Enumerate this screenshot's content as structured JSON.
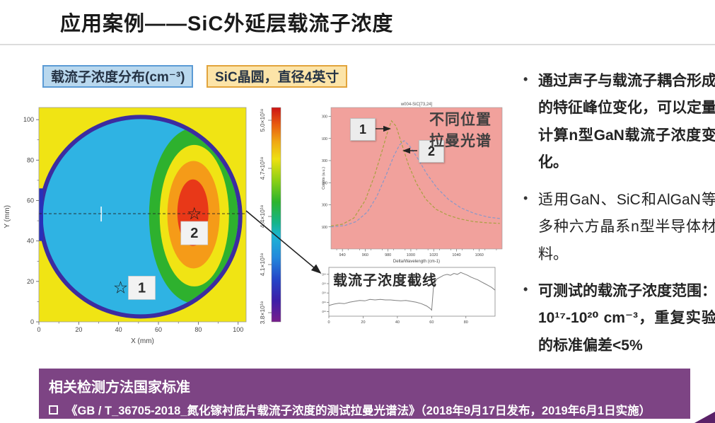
{
  "slide": {
    "title": "应用案例——SiC外延层载流子浓度",
    "chips": [
      {
        "label": "载流子浓度分布(cm⁻³)"
      },
      {
        "label": "SiC晶圆，直径4英寸"
      }
    ],
    "bullets": [
      {
        "text": "通过声子与载流子耦合形成的特征峰位变化，可以定量计算n型GaN载流子浓度变化。",
        "bold": true
      },
      {
        "text": "适用GaN、SiC和AlGaN等多种六方晶系n型半导体材料。",
        "bold": false
      },
      {
        "text": "可测试的载流子浓度范围：10¹⁷-10²⁰ cm⁻³，重复实验的标准偏差<5%",
        "bold": true
      }
    ],
    "banner": {
      "heading": "相关检测方法国家标准",
      "item": "《GB / T_36705-2018_氮化镓衬底片载流子浓度的测试拉曼光谱法》（2018年9月17日发布，2019年6月1日实施）"
    }
  },
  "colors": {
    "banner_purple": "#7d4484",
    "corner_purple": "#5b2168",
    "chip_blue_bg": "#b9d8ee",
    "chip_blue_border": "#5b9bd5",
    "chip_yellow_bg": "#fce4a8",
    "chip_yellow_border": "#e2a43c",
    "raman_plot_bg": "#f1a19c",
    "wafer_bg_yellow": "#f0e414",
    "wafer_body_cyan": "#2fb3e3",
    "wafer_rim_blue": "#3c2ca0",
    "lobe_green": "#2eb12e",
    "lobe_yellow": "#f0e414",
    "lobe_orange": "#f59b18",
    "lobe_red": "#e83818"
  },
  "chart_data": [
    {
      "type": "heatmap",
      "name": "wafer-carrier-concentration-map",
      "xlabel": "X (mm)",
      "ylabel": "Y (mm)",
      "xticks": [
        0,
        20,
        40,
        60,
        80,
        100
      ],
      "yticks": [
        0,
        20,
        40,
        60,
        80,
        100
      ],
      "xlim": [
        0,
        104
      ],
      "ylim": [
        0,
        106
      ],
      "colorbar_ticks": [
        "5.0×10¹⁸",
        "4.7×10¹⁸",
        "4.4×10¹⁸",
        "4.1×10¹⁸",
        "3.8×10¹⁸"
      ],
      "markers": [
        {
          "label": "1",
          "x": 41,
          "y": 17
        },
        {
          "label": "2",
          "x": 78,
          "y": 53.5
        }
      ],
      "cutline_y": 53.5,
      "description": "4英寸SiC晶圆载流子浓度分布图：晶圆主体约4.2×10¹⁸ cm⁻³（青色），右侧月牙形高浓度区达5.0×10¹⁸ cm⁻³（红-橙色），沿y≈53mm有虚线截线，背景为黄色，边缘为深蓝紫色"
    },
    {
      "type": "line",
      "name": "raman-spectra-two-positions",
      "title": "w004-SiC[73,24]",
      "annotation": "不同位置\n拉曼光谱",
      "xlabel": "Delta/Wavelength (cm-1)",
      "ylabel": "Counts (a.u.)",
      "xticks": [
        940,
        960,
        980,
        1000,
        1020,
        1040,
        1060
      ],
      "yticks": [
        500,
        1000,
        1500,
        2000,
        2500,
        3000
      ],
      "xlim": [
        930,
        1080
      ],
      "ylim": [
        0,
        3200
      ],
      "series": [
        {
          "name": "1",
          "color": "#a8a040",
          "dash": true,
          "points": [
            [
              930,
              520
            ],
            [
              940,
              560
            ],
            [
              950,
              700
            ],
            [
              960,
              1100
            ],
            [
              968,
              1650
            ],
            [
              974,
              2150
            ],
            [
              979,
              2600
            ],
            [
              983,
              2900
            ],
            [
              987,
              2780
            ],
            [
              992,
              2380
            ],
            [
              998,
              1900
            ],
            [
              1005,
              1480
            ],
            [
              1013,
              1130
            ],
            [
              1022,
              900
            ],
            [
              1032,
              770
            ],
            [
              1043,
              680
            ],
            [
              1055,
              620
            ],
            [
              1068,
              590
            ],
            [
              1078,
              580
            ]
          ]
        },
        {
          "name": "2",
          "color": "#8898c8",
          "dash": true,
          "points": [
            [
              930,
              500
            ],
            [
              942,
              530
            ],
            [
              952,
              620
            ],
            [
              962,
              840
            ],
            [
              970,
              1180
            ],
            [
              978,
              1650
            ],
            [
              985,
              2100
            ],
            [
              990,
              2350
            ],
            [
              994,
              2450
            ],
            [
              999,
              2330
            ],
            [
              1006,
              2050
            ],
            [
              1014,
              1700
            ],
            [
              1023,
              1380
            ],
            [
              1033,
              1120
            ],
            [
              1044,
              930
            ],
            [
              1056,
              800
            ],
            [
              1068,
              720
            ],
            [
              1078,
              690
            ]
          ]
        }
      ]
    },
    {
      "type": "line",
      "name": "carrier-concentration-cutline",
      "title": "载流子浓度截线",
      "xticks": [
        0,
        20,
        40,
        60,
        80
      ],
      "yticks": [
        4.0,
        4.2,
        4.4,
        4.6,
        4.8
      ],
      "ytick_labels": [
        "4.0×10¹⁸",
        "4.2×10¹⁸",
        "4.4×10¹⁸",
        "4.6×10¹⁸",
        "4.8×10¹⁸"
      ],
      "xlim": [
        0,
        97
      ],
      "ylim": [
        3.9,
        4.95
      ],
      "series": [
        {
          "name": "截线",
          "color": "#808080",
          "points": [
            [
              0,
              4.13
            ],
            [
              3,
              4.16
            ],
            [
              6,
              4.18
            ],
            [
              9,
              4.17
            ],
            [
              12,
              4.2
            ],
            [
              15,
              4.22
            ],
            [
              18,
              4.24
            ],
            [
              21,
              4.23
            ],
            [
              24,
              4.26
            ],
            [
              27,
              4.25
            ],
            [
              30,
              4.26
            ],
            [
              33,
              4.25
            ],
            [
              36,
              4.25
            ],
            [
              39,
              4.24
            ],
            [
              42,
              4.23
            ],
            [
              45,
              4.24
            ],
            [
              48,
              4.22
            ],
            [
              51,
              4.2
            ],
            [
              54,
              4.17
            ],
            [
              57,
              4.12
            ],
            [
              59,
              4.07
            ],
            [
              60,
              4.03
            ],
            [
              61,
              4.5
            ],
            [
              62,
              4.63
            ],
            [
              63,
              4.7
            ],
            [
              65,
              4.74
            ],
            [
              67,
              4.78
            ],
            [
              69,
              4.8
            ],
            [
              71,
              4.78
            ],
            [
              73,
              4.82
            ],
            [
              75,
              4.8
            ],
            [
              77,
              4.84
            ],
            [
              79,
              4.81
            ],
            [
              81,
              4.78
            ],
            [
              83,
              4.74
            ],
            [
              85,
              4.71
            ],
            [
              87,
              4.68
            ],
            [
              89,
              4.64
            ],
            [
              91,
              4.6
            ],
            [
              93,
              4.56
            ],
            [
              95,
              4.52
            ],
            [
              97,
              4.46
            ]
          ]
        }
      ]
    }
  ]
}
